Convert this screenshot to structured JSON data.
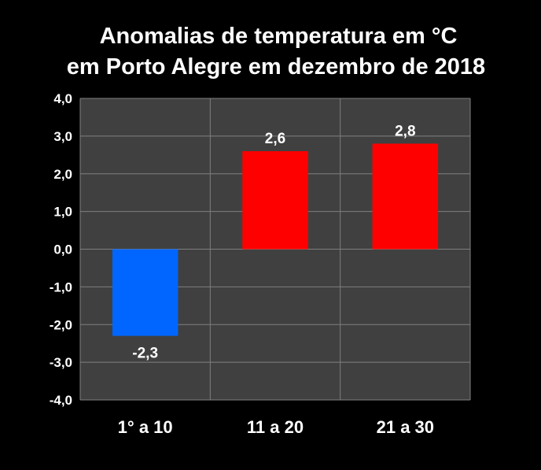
{
  "chart_data": {
    "type": "bar",
    "title_lines": [
      "Anomalias de temperatura em °C",
      "em Porto Alegre em dezembro de 2018"
    ],
    "categories": [
      "1° a 10",
      "11 a 20",
      "21 a 30"
    ],
    "values": [
      -2.3,
      2.6,
      2.8
    ],
    "value_labels": [
      "-2,3",
      "2,6",
      "2,8"
    ],
    "colors": [
      "#0066ff",
      "#ff0000",
      "#ff0000"
    ],
    "ylim": [
      -4,
      4
    ],
    "yticks": [
      4,
      3,
      2,
      1,
      0,
      -1,
      -2,
      -3,
      -4
    ],
    "ytick_labels": [
      "4,0",
      "3,0",
      "2,0",
      "1,0",
      "0,0",
      "-1,0",
      "-2,0",
      "-3,0",
      "-4,0"
    ],
    "xlabel": "",
    "ylabel": "",
    "grid": true,
    "background": "#000000",
    "plot_background": "#404040",
    "grid_color": "#7f7f7f"
  }
}
